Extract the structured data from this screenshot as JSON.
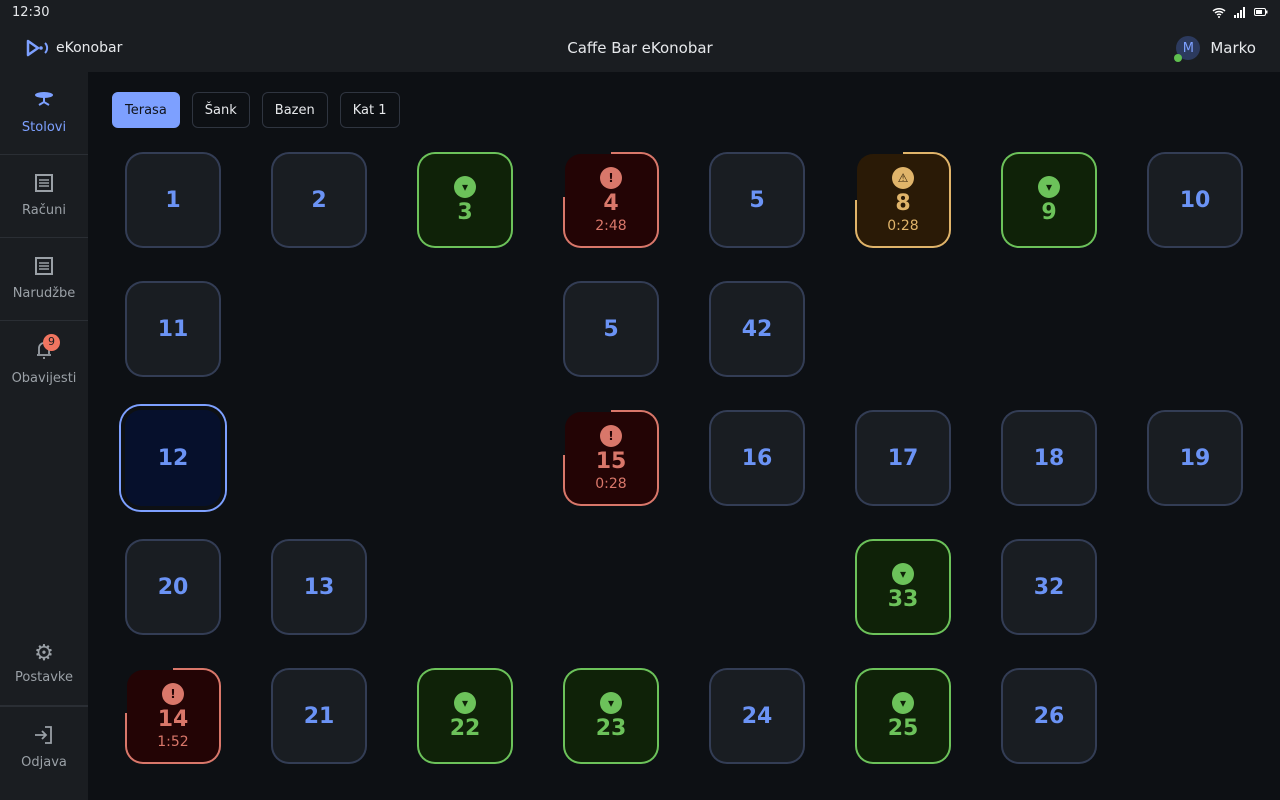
{
  "status_bar": {
    "time": "12:30",
    "icons": [
      "wifi-icon",
      "signal-icon",
      "battery-icon"
    ]
  },
  "header": {
    "logo_text": "eKonobar",
    "title": "Caffe Bar eKonobar",
    "user_name": "Marko",
    "user_initial": "M"
  },
  "sidebar": {
    "items": [
      {
        "label": "Stolovi",
        "icon": "table-icon",
        "active": true
      },
      {
        "label": "Računi",
        "icon": "receipt-icon"
      },
      {
        "label": "Narudžbe",
        "icon": "orders-icon"
      },
      {
        "label": "Obavijesti",
        "icon": "bell-icon",
        "badge": "9"
      }
    ],
    "bottom": [
      {
        "label": "Postavke",
        "icon": "gear-icon"
      },
      {
        "label": "Odjava",
        "icon": "logout-icon"
      }
    ]
  },
  "tabs": [
    {
      "label": "Terasa",
      "active": true
    },
    {
      "label": "Šank"
    },
    {
      "label": "Bazen"
    },
    {
      "label": "Kat 1"
    }
  ],
  "colors": {
    "accent": "#7da0ff",
    "free": "#6b93f5",
    "served": "#6cc25a",
    "alert": "#d9776a",
    "warning": "#e0b46a"
  },
  "tables": [
    [
      {
        "n": "1",
        "s": "free"
      },
      {
        "n": "2",
        "s": "free"
      },
      {
        "n": "3",
        "s": "green"
      },
      {
        "n": "4",
        "s": "red",
        "time": "2:48",
        "progress": 0.76
      },
      {
        "n": "5",
        "s": "free"
      },
      {
        "n": "8",
        "s": "amber",
        "time": "0:28",
        "progress": 0.75
      },
      {
        "n": "9",
        "s": "green"
      },
      {
        "n": "10",
        "s": "free"
      }
    ],
    [
      {
        "n": "11",
        "s": "free"
      },
      null,
      null,
      {
        "n": "5",
        "s": "free"
      },
      {
        "n": "42",
        "s": "free"
      },
      null,
      null,
      null
    ],
    [
      {
        "n": "12",
        "s": "sel"
      },
      null,
      null,
      {
        "n": "15",
        "s": "red",
        "time": "0:28",
        "progress": 0.76
      },
      {
        "n": "16",
        "s": "free"
      },
      {
        "n": "17",
        "s": "free"
      },
      {
        "n": "18",
        "s": "free"
      },
      {
        "n": "19",
        "s": "free"
      }
    ],
    [
      {
        "n": "20",
        "s": "free"
      },
      {
        "n": "13",
        "s": "free"
      },
      null,
      null,
      null,
      {
        "n": "33",
        "s": "green"
      },
      {
        "n": "32",
        "s": "free"
      },
      null
    ],
    [
      {
        "n": "14",
        "s": "red",
        "time": "1:52",
        "progress": 0.76
      },
      {
        "n": "21",
        "s": "free"
      },
      {
        "n": "22",
        "s": "green"
      },
      {
        "n": "23",
        "s": "green"
      },
      {
        "n": "24",
        "s": "free"
      },
      {
        "n": "25",
        "s": "green"
      },
      {
        "n": "26",
        "s": "free"
      },
      null
    ]
  ]
}
